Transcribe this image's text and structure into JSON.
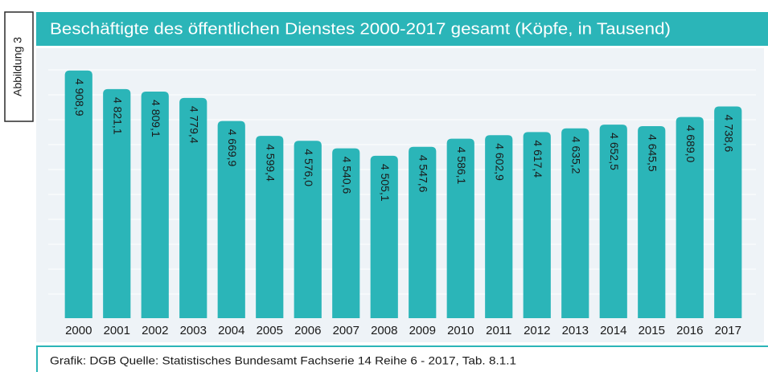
{
  "chart_data": {
    "type": "bar",
    "figure_label": "Abbildung 3",
    "title": "Beschäftigte des öffentlichen Dienstes 2000-2017 gesamt (Köpfe, in Tausend)",
    "source": "Grafik: DGB Quelle: Statistisches Bundesamt Fachserie 14 Reihe 6 - 2017, Tab. 8.1.1",
    "categories": [
      "2000",
      "2001",
      "2002",
      "2003",
      "2004",
      "2005",
      "2006",
      "2007",
      "2008",
      "2009",
      "2010",
      "2011",
      "2012",
      "2013",
      "2014",
      "2015",
      "2016",
      "2017"
    ],
    "values": [
      4908.9,
      4821.1,
      4809.1,
      4779.4,
      4669.9,
      4599.4,
      4576.0,
      4540.6,
      4505.1,
      4547.6,
      4586.1,
      4602.9,
      4617.4,
      4635.2,
      4652.5,
      4645.5,
      4689.0,
      4738.6
    ],
    "value_labels": [
      "4 908,9",
      "4 821,1",
      "4 809,1",
      "4 779,4",
      "4 669,9",
      "4 599,4",
      "4 576,0",
      "4 540,6",
      "4 505,1",
      "4 547,6",
      "4 586,1",
      "4 602,9",
      "4 617,4",
      "4 635,2",
      "4 652,5",
      "4 645,5",
      "4 689,0",
      "4 738,6"
    ],
    "color": "#2bb5b8",
    "ylim": [
      3736,
      4950
    ]
  }
}
